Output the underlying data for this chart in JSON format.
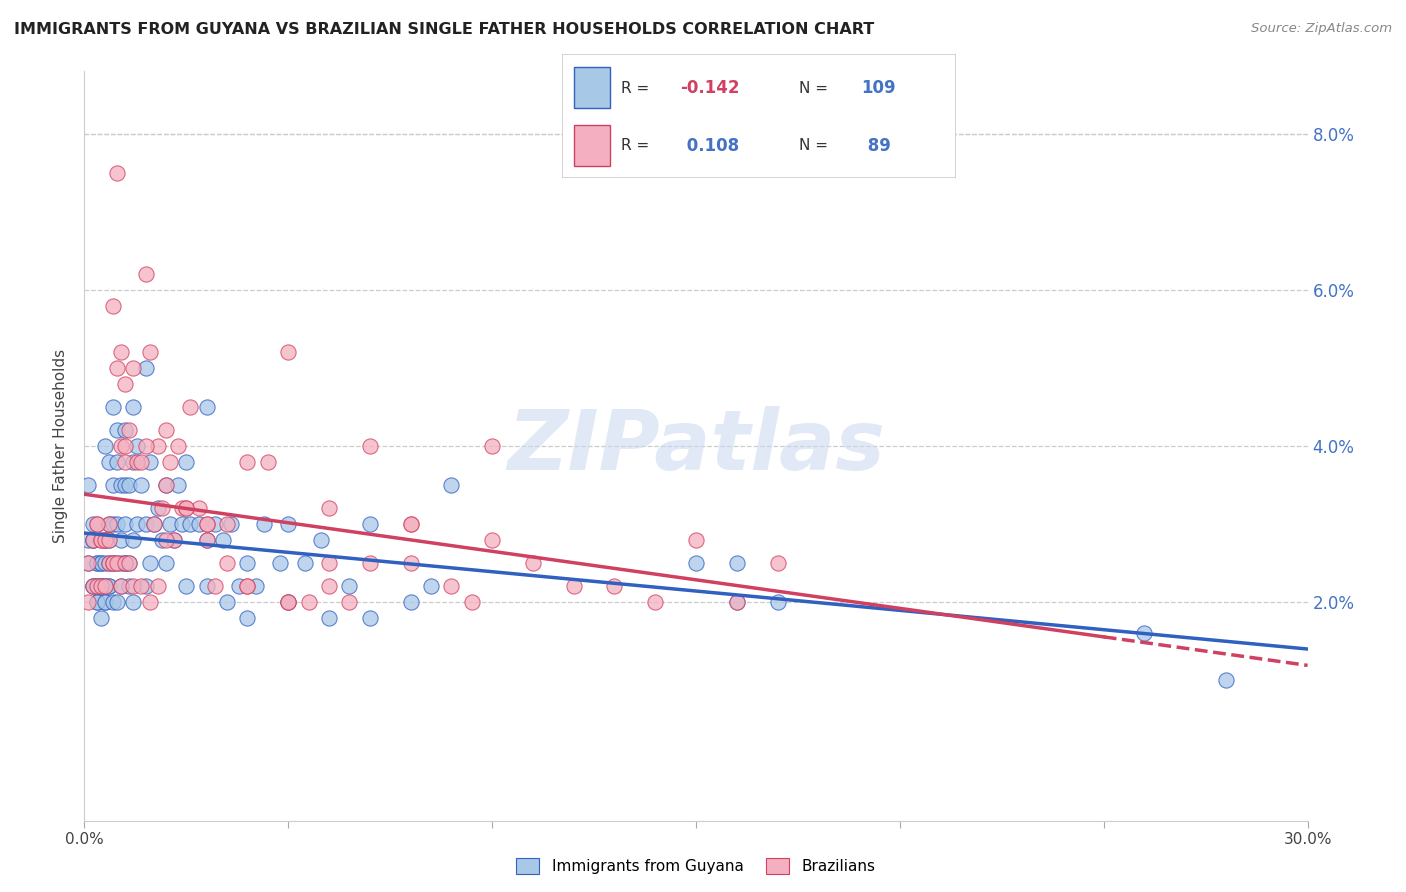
{
  "title": "IMMIGRANTS FROM GUYANA VS BRAZILIAN SINGLE FATHER HOUSEHOLDS CORRELATION CHART",
  "source": "Source: ZipAtlas.com",
  "ylabel": "Single Father Households",
  "xlim": [
    0.0,
    0.3
  ],
  "ylim": [
    -0.008,
    0.088
  ],
  "yticks": [
    0.02,
    0.04,
    0.06,
    0.08
  ],
  "ytick_labels": [
    "2.0%",
    "4.0%",
    "6.0%",
    "8.0%"
  ],
  "xticks": [
    0.0,
    0.05,
    0.1,
    0.15,
    0.2,
    0.25,
    0.3
  ],
  "xtick_labels": [
    "0.0%",
    "",
    "",
    "",
    "",
    "",
    "30.0%"
  ],
  "color_blue": "#a8c8e8",
  "color_pink": "#f4b0c0",
  "line_blue": "#3060c0",
  "line_pink": "#d04060",
  "watermark_text": "ZIPatlas",
  "r1": "-0.142",
  "n1": "109",
  "r2": "0.108",
  "n2": "89",
  "blue_x": [
    0.001,
    0.001,
    0.002,
    0.002,
    0.002,
    0.003,
    0.003,
    0.003,
    0.003,
    0.004,
    0.004,
    0.004,
    0.004,
    0.005,
    0.005,
    0.005,
    0.005,
    0.005,
    0.006,
    0.006,
    0.006,
    0.006,
    0.006,
    0.007,
    0.007,
    0.007,
    0.007,
    0.008,
    0.008,
    0.008,
    0.008,
    0.009,
    0.009,
    0.009,
    0.01,
    0.01,
    0.01,
    0.01,
    0.011,
    0.011,
    0.012,
    0.012,
    0.012,
    0.013,
    0.013,
    0.014,
    0.015,
    0.015,
    0.016,
    0.016,
    0.017,
    0.018,
    0.019,
    0.02,
    0.021,
    0.022,
    0.023,
    0.024,
    0.025,
    0.026,
    0.028,
    0.03,
    0.03,
    0.032,
    0.034,
    0.036,
    0.038,
    0.04,
    0.042,
    0.044,
    0.048,
    0.05,
    0.054,
    0.058,
    0.065,
    0.07,
    0.085,
    0.09,
    0.15,
    0.16,
    0.17,
    0.26,
    0.28,
    0.001,
    0.002,
    0.002,
    0.003,
    0.003,
    0.004,
    0.005,
    0.005,
    0.006,
    0.007,
    0.008,
    0.009,
    0.01,
    0.011,
    0.012,
    0.015,
    0.02,
    0.025,
    0.03,
    0.035,
    0.04,
    0.05,
    0.06,
    0.07,
    0.08,
    0.16
  ],
  "blue_y": [
    0.028,
    0.025,
    0.03,
    0.022,
    0.028,
    0.025,
    0.025,
    0.022,
    0.02,
    0.025,
    0.025,
    0.022,
    0.018,
    0.04,
    0.028,
    0.025,
    0.022,
    0.02,
    0.038,
    0.03,
    0.028,
    0.025,
    0.022,
    0.045,
    0.035,
    0.03,
    0.025,
    0.042,
    0.038,
    0.03,
    0.025,
    0.035,
    0.028,
    0.025,
    0.042,
    0.035,
    0.03,
    0.025,
    0.035,
    0.025,
    0.045,
    0.038,
    0.028,
    0.04,
    0.03,
    0.035,
    0.05,
    0.03,
    0.038,
    0.025,
    0.03,
    0.032,
    0.028,
    0.035,
    0.03,
    0.028,
    0.035,
    0.03,
    0.038,
    0.03,
    0.03,
    0.045,
    0.028,
    0.03,
    0.028,
    0.03,
    0.022,
    0.025,
    0.022,
    0.03,
    0.025,
    0.03,
    0.025,
    0.028,
    0.022,
    0.03,
    0.022,
    0.035,
    0.025,
    0.025,
    0.02,
    0.016,
    0.01,
    0.035,
    0.022,
    0.028,
    0.022,
    0.02,
    0.022,
    0.02,
    0.022,
    0.022,
    0.02,
    0.02,
    0.022,
    0.025,
    0.022,
    0.02,
    0.022,
    0.025,
    0.022,
    0.022,
    0.02,
    0.018,
    0.02,
    0.018,
    0.018,
    0.02,
    0.02
  ],
  "pink_x": [
    0.001,
    0.001,
    0.002,
    0.002,
    0.003,
    0.003,
    0.004,
    0.004,
    0.005,
    0.005,
    0.006,
    0.006,
    0.007,
    0.007,
    0.008,
    0.008,
    0.009,
    0.009,
    0.01,
    0.01,
    0.011,
    0.012,
    0.013,
    0.014,
    0.015,
    0.016,
    0.017,
    0.018,
    0.019,
    0.02,
    0.021,
    0.022,
    0.023,
    0.024,
    0.026,
    0.028,
    0.03,
    0.032,
    0.035,
    0.04,
    0.045,
    0.05,
    0.055,
    0.06,
    0.065,
    0.07,
    0.08,
    0.09,
    0.1,
    0.12,
    0.14,
    0.16,
    0.003,
    0.004,
    0.005,
    0.006,
    0.007,
    0.008,
    0.009,
    0.01,
    0.011,
    0.012,
    0.014,
    0.016,
    0.018,
    0.02,
    0.025,
    0.03,
    0.035,
    0.04,
    0.05,
    0.06,
    0.07,
    0.08,
    0.1,
    0.01,
    0.015,
    0.02,
    0.025,
    0.03,
    0.04,
    0.05,
    0.06,
    0.08,
    0.095,
    0.11,
    0.13,
    0.15,
    0.17
  ],
  "pink_y": [
    0.025,
    0.02,
    0.028,
    0.022,
    0.03,
    0.022,
    0.028,
    0.022,
    0.028,
    0.022,
    0.03,
    0.025,
    0.058,
    0.025,
    0.075,
    0.05,
    0.052,
    0.04,
    0.048,
    0.038,
    0.042,
    0.05,
    0.038,
    0.038,
    0.062,
    0.052,
    0.03,
    0.04,
    0.032,
    0.042,
    0.038,
    0.028,
    0.04,
    0.032,
    0.045,
    0.032,
    0.03,
    0.022,
    0.025,
    0.022,
    0.038,
    0.052,
    0.02,
    0.032,
    0.02,
    0.025,
    0.03,
    0.022,
    0.028,
    0.022,
    0.02,
    0.02,
    0.03,
    0.028,
    0.028,
    0.028,
    0.025,
    0.025,
    0.022,
    0.025,
    0.025,
    0.022,
    0.022,
    0.02,
    0.022,
    0.028,
    0.032,
    0.028,
    0.03,
    0.038,
    0.02,
    0.025,
    0.04,
    0.03,
    0.04,
    0.04,
    0.04,
    0.035,
    0.032,
    0.03,
    0.022,
    0.02,
    0.022,
    0.025,
    0.02,
    0.025,
    0.022,
    0.028,
    0.025
  ]
}
